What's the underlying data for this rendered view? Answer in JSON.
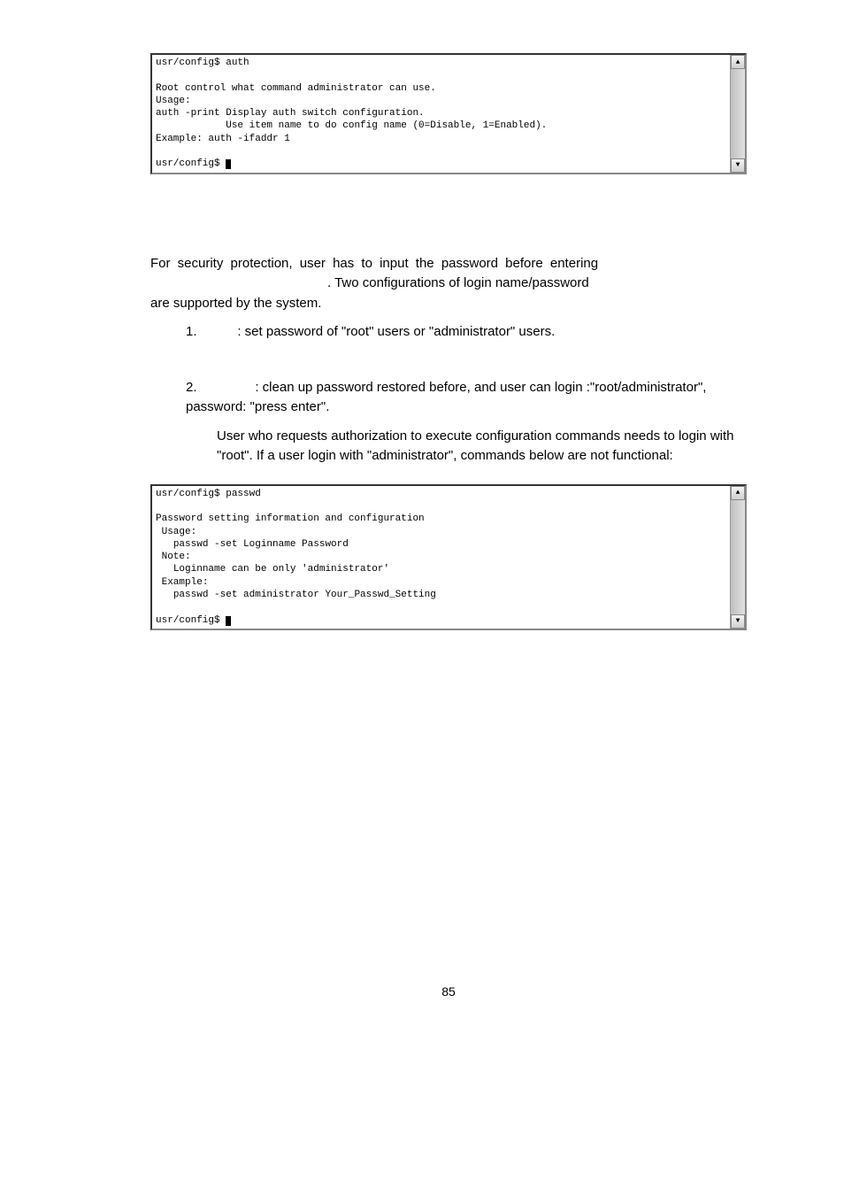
{
  "terminal1": {
    "content": "usr/config$ auth\n\nRoot control what command administrator can use.\nUsage:\nauth -print Display auth switch configuration.\n            Use item name to do config name (0=Disable, 1=Enabled).\nExample: auth -ifaddr 1\n\nusr/config$ "
  },
  "para1": "For  security  protection,  user  has  to  input  the  password  before  entering",
  "para1b": ". Two configurations of login name/password",
  "para1c": "are supported by the system.",
  "list1_num": "1.",
  "list1_text": ": set password of \"root\" users or \"administrator\" users.",
  "list2_num": "2.",
  "list2_text": ": clean up password restored before, and user can login :\"root/administrator\", password: \"press enter\".",
  "sub1": "User who requests authorization to execute     configuration commands needs to login with \"root\". If a user login with \"administrator\", commands below are not functional:",
  "terminal2": {
    "content": "usr/config$ passwd\n\nPassword setting information and configuration\n Usage:\n   passwd -set Loginname Password\n Note:\n   Loginname can be only 'administrator'\n Example:\n   passwd -set administrator Your_Passwd_Setting\n\nusr/config$ "
  },
  "page_number": "85",
  "scroll_up_glyph": "▲",
  "scroll_down_glyph": "▼"
}
